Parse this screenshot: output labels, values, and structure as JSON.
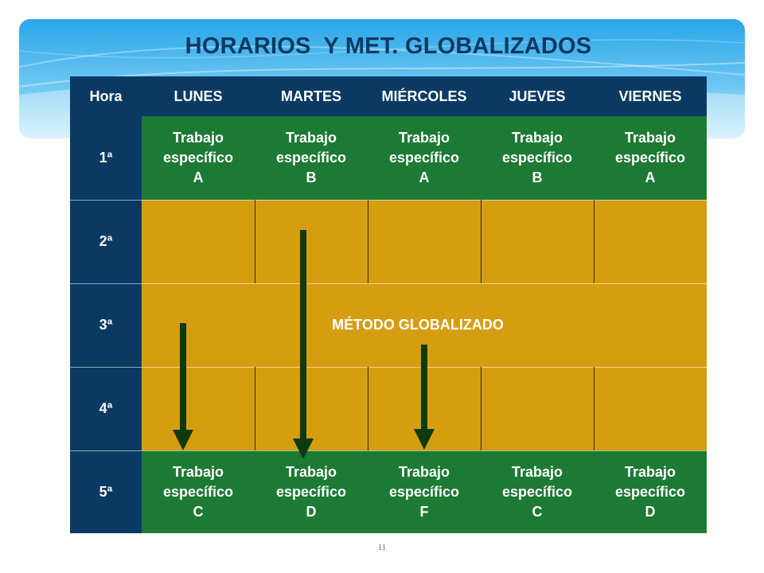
{
  "slide": {
    "title": "HORARIOS  Y MET. GLOBALIZADOS",
    "page_number": "11",
    "colors": {
      "header_bg": "#0a3a63",
      "green_cell": "#1d7a34",
      "gold_cell": "#d59e10",
      "arrow": "#0e3a0e",
      "banner": "#2aa6e8"
    }
  },
  "table": {
    "headers": [
      "Hora",
      "LUNES",
      "MARTES",
      "MIÉRCOLES",
      "JUEVES",
      "VIERNES"
    ],
    "rows": [
      {
        "label": "1ª",
        "cells": [
          [
            "Trabajo",
            "específico",
            "A"
          ],
          [
            "Trabajo",
            "específico",
            "B"
          ],
          [
            "Trabajo",
            "específico",
            "A"
          ],
          [
            "Trabajo",
            "específico",
            "B"
          ],
          [
            "Trabajo",
            "específico",
            "A"
          ]
        ]
      },
      {
        "label": "2ª"
      },
      {
        "label": "3ª",
        "merged_text": "MÉTODO GLOBALIZADO"
      },
      {
        "label": "4ª"
      },
      {
        "label": "5ª",
        "cells": [
          [
            "Trabajo",
            "específico",
            "C"
          ],
          [
            "Trabajo",
            "específico",
            "D"
          ],
          [
            "Trabajo",
            "específico",
            "F"
          ],
          [
            "Trabajo",
            "específico",
            "C"
          ],
          [
            "Trabajo",
            "específico",
            "D"
          ]
        ]
      }
    ]
  }
}
